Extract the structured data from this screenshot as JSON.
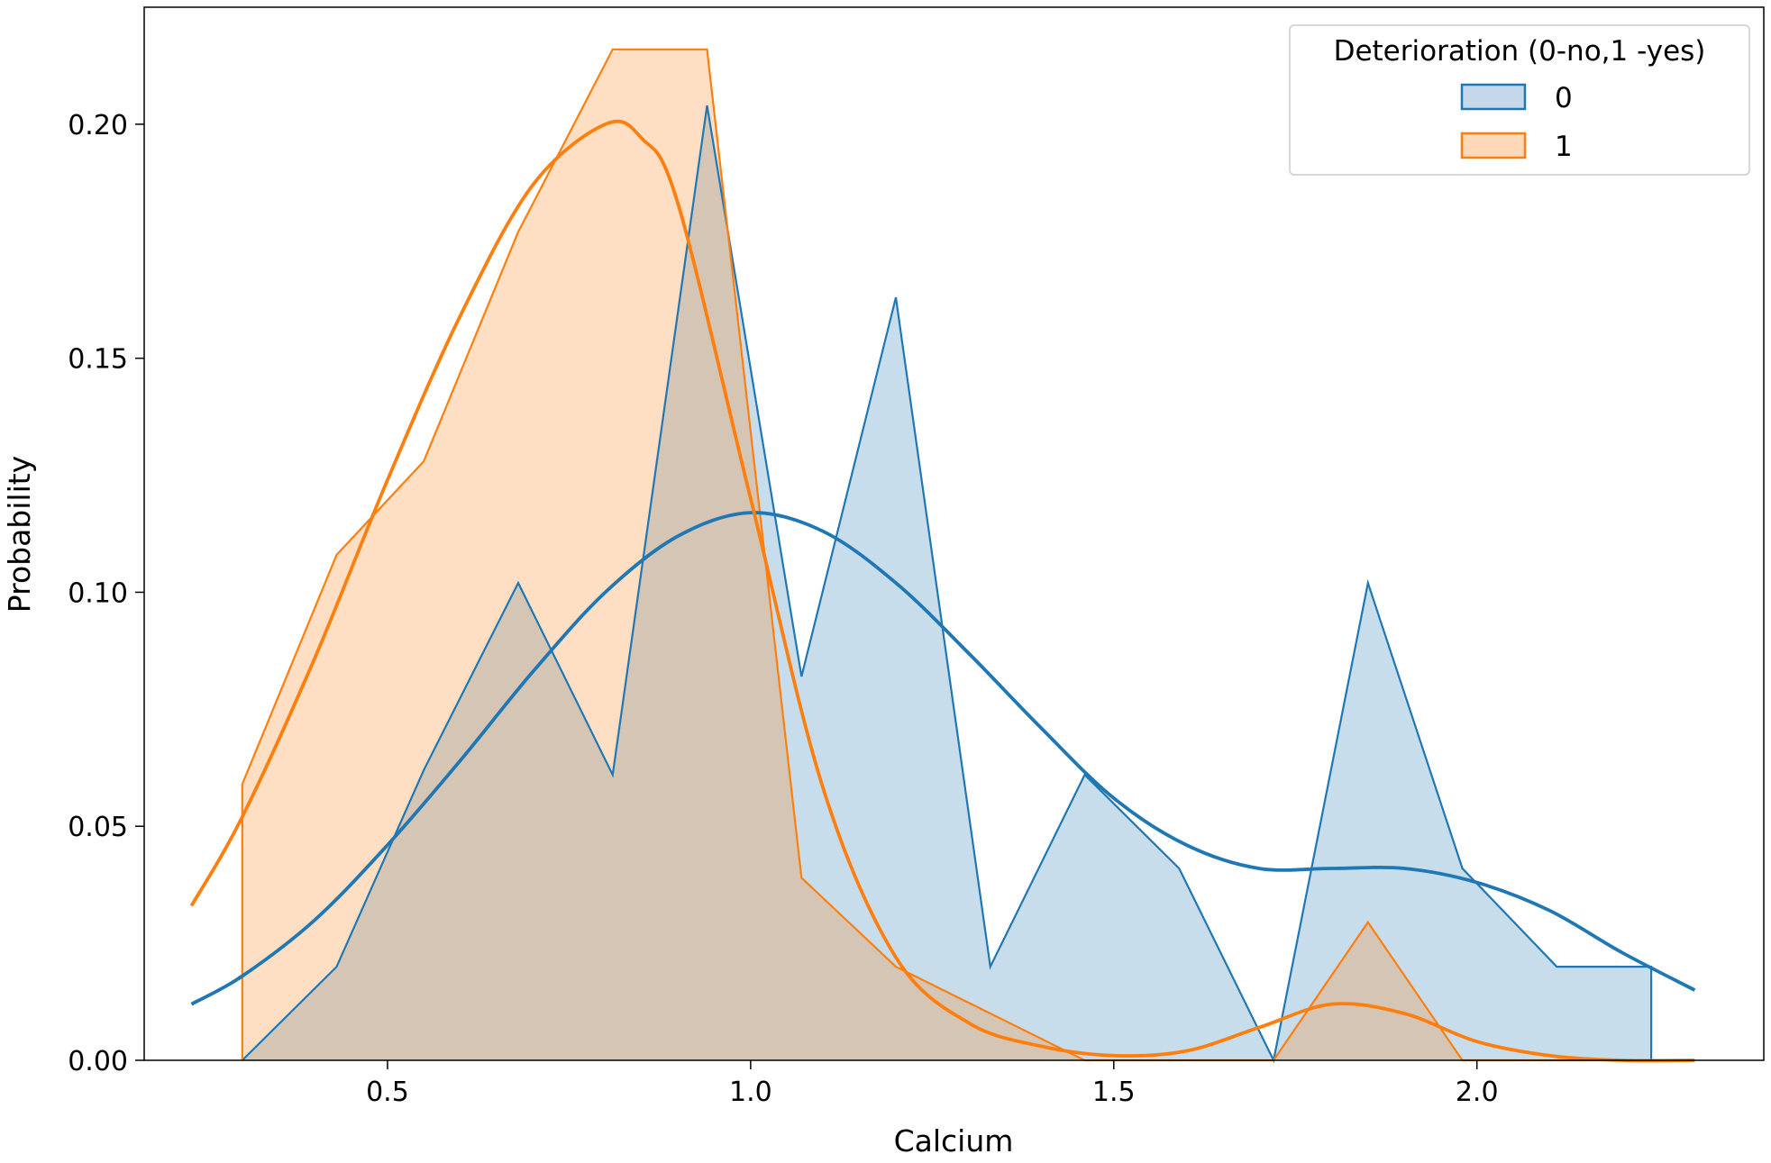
{
  "chart_data": {
    "type": "area",
    "title": "",
    "xlabel": "Calcium",
    "ylabel": "Probability",
    "xlim": [
      0.165,
      2.395
    ],
    "ylim": [
      0.0,
      0.225
    ],
    "xticks": [
      0.5,
      1.0,
      1.5,
      2.0
    ],
    "xtick_labels": [
      "0.5",
      "1.0",
      "1.5",
      "2.0"
    ],
    "yticks": [
      0.0,
      0.05,
      0.1,
      0.15,
      0.2
    ],
    "ytick_labels": [
      "0.00",
      "0.05",
      "0.10",
      "0.15",
      "0.20"
    ],
    "grid": false,
    "legend": {
      "title": "Deterioration (0-no,1 -yes)",
      "placement": "top-right",
      "entries": [
        "0",
        "1"
      ]
    },
    "series": [
      {
        "name": "0",
        "color": "#1f77b4",
        "fill_color": "#c4d8ea",
        "polygon": {
          "x": [
            0.3,
            0.3,
            0.43,
            0.55,
            0.68,
            0.81,
            0.94,
            1.07,
            1.2,
            1.33,
            1.46,
            1.59,
            1.72,
            1.85,
            1.98,
            2.11,
            2.24,
            2.24
          ],
          "y": [
            0.0,
            0.0,
            0.02,
            0.062,
            0.102,
            0.061,
            0.204,
            0.082,
            0.163,
            0.02,
            0.061,
            0.041,
            0.0,
            0.102,
            0.041,
            0.02,
            0.02,
            0.0
          ]
        },
        "kde": {
          "x": [
            0.23,
            0.3,
            0.4,
            0.5,
            0.6,
            0.7,
            0.8,
            0.9,
            1.0,
            1.1,
            1.2,
            1.3,
            1.4,
            1.5,
            1.6,
            1.7,
            1.8,
            1.9,
            2.0,
            2.1,
            2.2,
            2.3
          ],
          "y": [
            0.012,
            0.018,
            0.03,
            0.046,
            0.064,
            0.083,
            0.1,
            0.112,
            0.117,
            0.113,
            0.102,
            0.087,
            0.071,
            0.056,
            0.046,
            0.041,
            0.041,
            0.041,
            0.038,
            0.032,
            0.023,
            0.015
          ]
        }
      },
      {
        "name": "1",
        "color": "#ff7f0e",
        "fill_color": "#fdd9ba",
        "polygon": {
          "x": [
            0.3,
            0.3,
            0.43,
            0.55,
            0.68,
            0.81,
            0.94,
            1.07,
            1.2,
            1.33,
            1.46,
            1.59,
            1.72,
            1.85,
            1.98,
            2.11,
            2.24,
            2.24
          ],
          "y": [
            0.0,
            0.059,
            0.108,
            0.128,
            0.177,
            0.216,
            0.216,
            0.039,
            0.02,
            0.01,
            0.0,
            0.0,
            0.0,
            0.0295,
            0.0,
            0.0,
            0.0,
            0.0
          ]
        },
        "kde": {
          "x": [
            0.23,
            0.3,
            0.4,
            0.5,
            0.6,
            0.7,
            0.8,
            0.85,
            0.9,
            1.0,
            1.1,
            1.2,
            1.3,
            1.4,
            1.5,
            1.6,
            1.7,
            1.8,
            1.9,
            2.0,
            2.1,
            2.2,
            2.3
          ],
          "y": [
            0.033,
            0.052,
            0.086,
            0.124,
            0.159,
            0.187,
            0.2,
            0.197,
            0.183,
            0.12,
            0.058,
            0.022,
            0.008,
            0.003,
            0.001,
            0.002,
            0.007,
            0.012,
            0.01,
            0.004,
            0.001,
            0.0,
            0.0
          ]
        }
      }
    ]
  }
}
